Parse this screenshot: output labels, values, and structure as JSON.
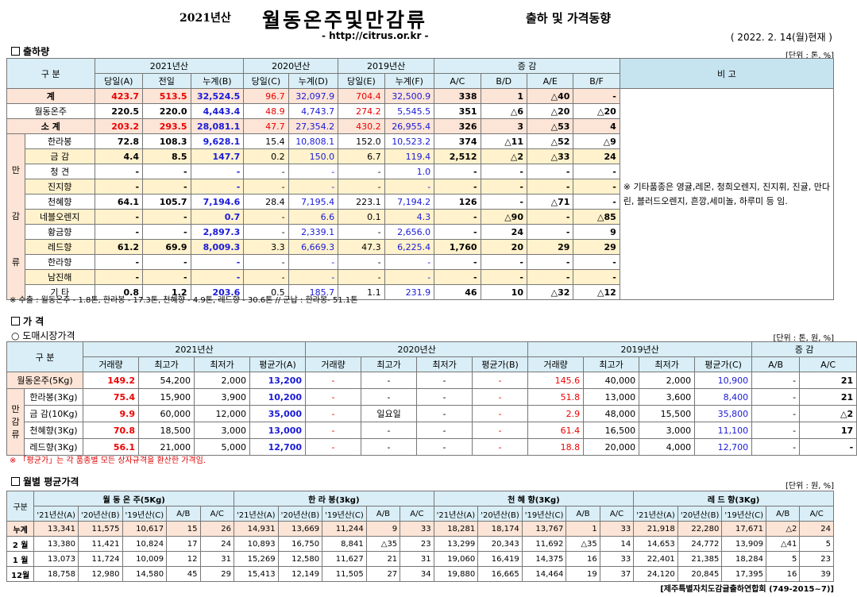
{
  "header": {
    "year": "2021년산",
    "title": "월동온주및만감류",
    "subtitle": "출하 및 가격동향",
    "url": "- http://citrus.or.kr -",
    "date": "( 2022. 2. 14(월)현재 )"
  },
  "ship": {
    "title": "출하량",
    "unit": "[단위 : 톤, %]",
    "h1": [
      "구   분",
      "2021년산",
      "2020년산",
      "2019년산",
      "증   감",
      "비 고"
    ],
    "h2": [
      "당일(A)",
      "전일",
      "누계(B)",
      "당일(C)",
      "누계(D)",
      "당일(E)",
      "누계(F)",
      "A/C",
      "B/D",
      "A/E",
      "B/F"
    ],
    "rows": [
      {
        "name": "계",
        "v": [
          "423.7",
          "513.5",
          "32,524.5",
          "96.7",
          "32,097.9",
          "704.4",
          "32,500.9",
          "338",
          "1",
          "△40",
          "-"
        ]
      },
      {
        "name": "월동온주",
        "v": [
          "220.5",
          "220.0",
          "4,443.4",
          "48.9",
          "4,743.7",
          "274.2",
          "5,545.5",
          "351",
          "△6",
          "△20",
          "△20"
        ]
      },
      {
        "name": "소   계",
        "v": [
          "203.2",
          "293.5",
          "28,081.1",
          "47.7",
          "27,354.2",
          "430.2",
          "26,955.4",
          "326",
          "3",
          "△53",
          "4"
        ]
      },
      {
        "name": "한라봉",
        "v": [
          "72.8",
          "108.3",
          "9,628.1",
          "15.4",
          "10,808.1",
          "152.0",
          "10,523.2",
          "374",
          "△11",
          "△52",
          "△9"
        ]
      },
      {
        "name": "금   감",
        "v": [
          "4.4",
          "8.5",
          "147.7",
          "0.2",
          "150.0",
          "6.7",
          "119.4",
          "2,512",
          "△2",
          "△33",
          "24"
        ]
      },
      {
        "name": "청   견",
        "v": [
          "-",
          "-",
          "-",
          "-",
          "-",
          "-",
          "1.0",
          "-",
          "-",
          "-",
          "-"
        ]
      },
      {
        "name": "진지향",
        "v": [
          "-",
          "-",
          "-",
          "-",
          "-",
          "-",
          "-",
          "-",
          "-",
          "-",
          "-"
        ]
      },
      {
        "name": "천혜향",
        "v": [
          "64.1",
          "105.7",
          "7,194.6",
          "28.4",
          "7,195.4",
          "223.1",
          "7,194.2",
          "126",
          "-",
          "△71",
          "-"
        ]
      },
      {
        "name": "네블오렌지",
        "v": [
          "-",
          "-",
          "0.7",
          "-",
          "6.6",
          "0.1",
          "4.3",
          "-",
          "△90",
          "-",
          "△85"
        ]
      },
      {
        "name": "황금향",
        "v": [
          "-",
          "-",
          "2,897.3",
          "-",
          "2,339.1",
          "-",
          "2,656.0",
          "-",
          "24",
          "-",
          "9"
        ]
      },
      {
        "name": "레드향",
        "v": [
          "61.2",
          "69.9",
          "8,009.3",
          "3.3",
          "6,669.3",
          "47.3",
          "6,225.4",
          "1,760",
          "20",
          "29",
          "29"
        ]
      },
      {
        "name": "한라향",
        "v": [
          "-",
          "-",
          "-",
          "-",
          "-",
          "-",
          "-",
          "-",
          "-",
          "-",
          "-"
        ]
      },
      {
        "name": "남진해",
        "v": [
          "-",
          "-",
          "-",
          "-",
          "-",
          "-",
          "-",
          "-",
          "-",
          "-",
          "-"
        ]
      },
      {
        "name": "기   타",
        "v": [
          "0.8",
          "1.2",
          "203.6",
          "0.5",
          "185.7",
          "1.1",
          "231.9",
          "46",
          "10",
          "△32",
          "△12"
        ]
      }
    ],
    "group": [
      "만",
      "감",
      "류"
    ],
    "remark": "※ 기타품종은 영귤,레몬, 청희오렌지, 진지휘, 진귤, 만다린, 블러드오렌지, 흔깡,세미놀, 하루미 등 임.",
    "note": "※ 수출 : 월동온주 - 1.8톤, 한라봉 - 17.3톤, 천혜향 - 4.9톤, 레드향 - 30.6톤 // 군납 : 한라봉- 51.1톤"
  },
  "price": {
    "title": "가     격",
    "sub": "○ 도매시장가격",
    "unit": "[단위 : 톤, 원, %]",
    "h1": [
      "구   분",
      "2021년산",
      "2020년산",
      "2019년산",
      "증   감"
    ],
    "h2": [
      "거래량",
      "최고가",
      "최저가",
      "평균가(A)",
      "거래량",
      "최고가",
      "최저가",
      "평균가(B)",
      "거래량",
      "최고가",
      "최저가",
      "평균가(C)",
      "A/B",
      "A/C"
    ],
    "group": [
      "만",
      "감",
      "류"
    ],
    "rows": [
      {
        "name": "월동온주(5Kg)",
        "v": [
          "149.2",
          "54,200",
          "2,000",
          "13,200",
          "-",
          "-",
          "-",
          "-",
          "145.6",
          "40,000",
          "2,000",
          "10,900",
          "-",
          "21"
        ]
      },
      {
        "name": "한라봉(3Kg)",
        "v": [
          "75.4",
          "15,900",
          "3,900",
          "10,200",
          "-",
          "-",
          "-",
          "-",
          "51.8",
          "13,000",
          "3,600",
          "8,400",
          "-",
          "21"
        ]
      },
      {
        "name": "금 감(10Kg)",
        "v": [
          "9.9",
          "60,000",
          "12,000",
          "35,000",
          "-",
          "일요일",
          "-",
          "-",
          "2.9",
          "48,000",
          "15,500",
          "35,800",
          "-",
          "△2"
        ]
      },
      {
        "name": "천혜향(3Kg)",
        "v": [
          "70.8",
          "18,500",
          "3,000",
          "13,000",
          "-",
          "-",
          "-",
          "-",
          "61.4",
          "16,500",
          "3,000",
          "11,100",
          "-",
          "17"
        ]
      },
      {
        "name": "레드향(3Kg)",
        "v": [
          "56.1",
          "21,000",
          "5,000",
          "12,700",
          "-",
          "-",
          "-",
          "-",
          "18.8",
          "20,000",
          "4,000",
          "12,700",
          "-",
          "-"
        ]
      }
    ],
    "note": "※ 「평균가」는 각 품종별 모든 상자규격을 환산한 가격임."
  },
  "monthly": {
    "title": "월별 평균가격",
    "unit": "[단위 : 원, %]",
    "h1": [
      "구분",
      "월 동 온 주(5Kg)",
      "한 라 봉(3kg)",
      "천 혜 향(3Kg)",
      "레 드 향(3Kg)"
    ],
    "h2": [
      "'21년산(A)",
      "'20년산(B)",
      "'19년산(C)",
      "A/B",
      "A/C"
    ],
    "rows": [
      {
        "name": "누계",
        "v": [
          "13,341",
          "11,575",
          "10,617",
          "15",
          "26",
          "14,931",
          "13,669",
          "11,244",
          "9",
          "33",
          "18,281",
          "18,174",
          "13,767",
          "1",
          "33",
          "21,918",
          "22,280",
          "17,671",
          "△2",
          "24"
        ]
      },
      {
        "name": "2 월",
        "v": [
          "13,380",
          "11,421",
          "10,824",
          "17",
          "24",
          "10,893",
          "16,750",
          "8,841",
          "△35",
          "23",
          "13,299",
          "20,343",
          "11,692",
          "△35",
          "14",
          "14,653",
          "24,772",
          "13,909",
          "△41",
          "5"
        ]
      },
      {
        "name": "1 월",
        "v": [
          "13,073",
          "11,724",
          "10,009",
          "12",
          "31",
          "15,269",
          "12,580",
          "11,627",
          "21",
          "31",
          "19,060",
          "16,419",
          "14,375",
          "16",
          "33",
          "22,401",
          "21,385",
          "18,284",
          "5",
          "23"
        ]
      },
      {
        "name": "12월",
        "v": [
          "18,758",
          "12,980",
          "14,580",
          "45",
          "29",
          "15,413",
          "12,149",
          "11,505",
          "27",
          "34",
          "19,880",
          "16,665",
          "14,464",
          "19",
          "37",
          "24,120",
          "20,845",
          "17,395",
          "16",
          "39"
        ]
      }
    ]
  },
  "footer": "[제주특별자치도감귤출하연합회 (749-2015~7)]"
}
